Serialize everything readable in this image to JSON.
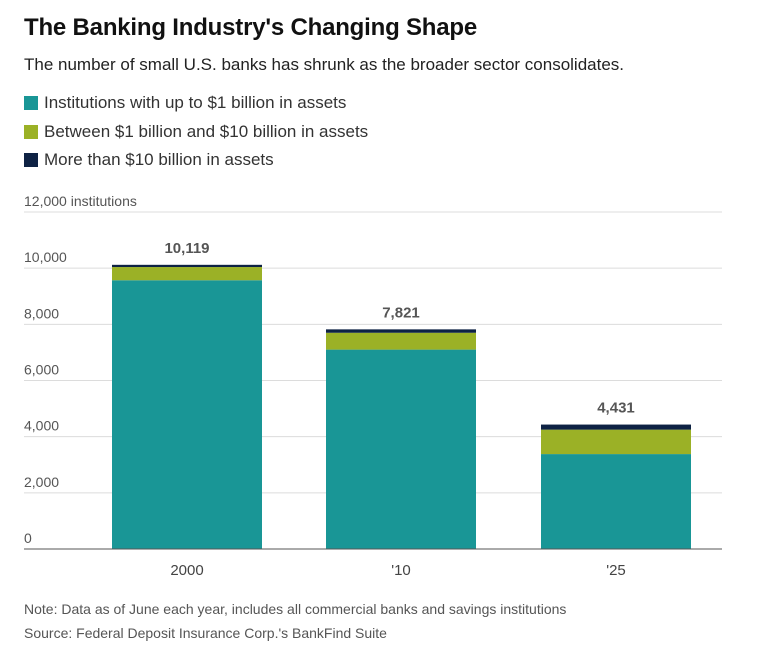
{
  "title": "The Banking Industry's Changing Shape",
  "subtitle": "The number of small U.S. banks has shrunk as the broader sector consolidates.",
  "legend": [
    {
      "label": "Institutions with up to $1 billion in assets",
      "color": "#199696"
    },
    {
      "label": "Between $1 billion and $10 billion in assets",
      "color": "#9bb126"
    },
    {
      "label": "More than $10 billion in assets",
      "color": "#0e2244"
    }
  ],
  "chart_data": {
    "type": "bar",
    "stacked": true,
    "categories": [
      "2000",
      "'10",
      "'25"
    ],
    "series": [
      {
        "name": "Institutions with up to $1 billion in assets",
        "color": "#199696",
        "values": [
          9570,
          7100,
          3380
        ]
      },
      {
        "name": "Between $1 billion and $10 billion in assets",
        "color": "#9bb126",
        "values": [
          470,
          600,
          870
        ]
      },
      {
        "name": "More than $10 billion in assets",
        "color": "#0e2244",
        "values": [
          79,
          121,
          181
        ]
      }
    ],
    "totals": [
      10119,
      7821,
      4431
    ],
    "total_labels": [
      "10,119",
      "7,821",
      "4,431"
    ],
    "ylim": [
      0,
      12000
    ],
    "yticks": [
      0,
      2000,
      4000,
      6000,
      8000,
      10000,
      12000
    ],
    "ytick_labels": [
      "0",
      "2,000",
      "4,000",
      "6,000",
      "8,000",
      "10,000",
      "12,000 institutions"
    ],
    "grid": true,
    "legend_position": "top-left"
  },
  "notes": {
    "note": "Note: Data as of June each year, includes all commercial banks and savings institutions",
    "source": "Source: Federal Deposit Insurance Corp.'s BankFind Suite"
  }
}
